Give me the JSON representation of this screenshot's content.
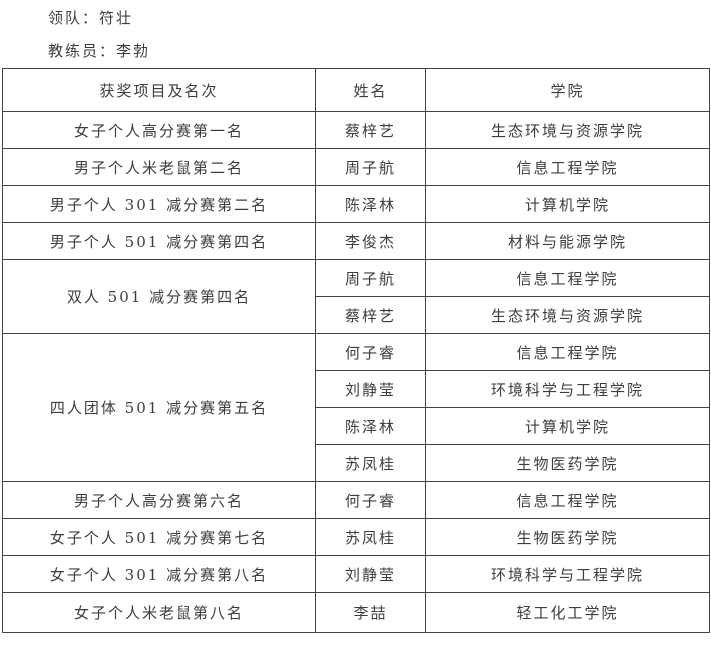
{
  "header": {
    "leader": "领队：符壮",
    "coach": "教练员：李勃"
  },
  "colors": {
    "background": "#ffffff",
    "text": "#3d3d3d",
    "border": "#424242"
  },
  "table": {
    "headers": [
      "获奖项目及名次",
      "姓名",
      "学院"
    ],
    "groups": [
      {
        "event": "女子个人高分赛第一名",
        "members": [
          {
            "name": "蔡梓艺",
            "college": "生态环境与资源学院"
          }
        ]
      },
      {
        "event": "男子个人米老鼠第二名",
        "members": [
          {
            "name": "周子航",
            "college": "信息工程学院"
          }
        ]
      },
      {
        "event": "男子个人 301 减分赛第二名",
        "members": [
          {
            "name": "陈泽林",
            "college": "计算机学院"
          }
        ]
      },
      {
        "event": "男子个人 501 减分赛第四名",
        "members": [
          {
            "name": "李俊杰",
            "college": "材料与能源学院"
          }
        ]
      },
      {
        "event": "双人 501 减分赛第四名",
        "members": [
          {
            "name": "周子航",
            "college": "信息工程学院"
          },
          {
            "name": "蔡梓艺",
            "college": "生态环境与资源学院"
          }
        ]
      },
      {
        "event": "四人团体 501 减分赛第五名",
        "members": [
          {
            "name": "何子睿",
            "college": "信息工程学院"
          },
          {
            "name": "刘静莹",
            "college": "环境科学与工程学院"
          },
          {
            "name": "陈泽林",
            "college": "计算机学院"
          },
          {
            "name": "苏凤桂",
            "college": "生物医药学院"
          }
        ]
      },
      {
        "event": "男子个人高分赛第六名",
        "members": [
          {
            "name": "何子睿",
            "college": "信息工程学院"
          }
        ]
      },
      {
        "event": "女子个人 501 减分赛第七名",
        "members": [
          {
            "name": "苏凤桂",
            "college": "生物医药学院"
          }
        ]
      },
      {
        "event": "女子个人 301 减分赛第八名",
        "members": [
          {
            "name": "刘静莹",
            "college": "环境科学与工程学院"
          }
        ]
      },
      {
        "event": "女子个人米老鼠第八名",
        "members": [
          {
            "name": "李喆",
            "college": "轻工化工学院"
          }
        ]
      }
    ]
  }
}
